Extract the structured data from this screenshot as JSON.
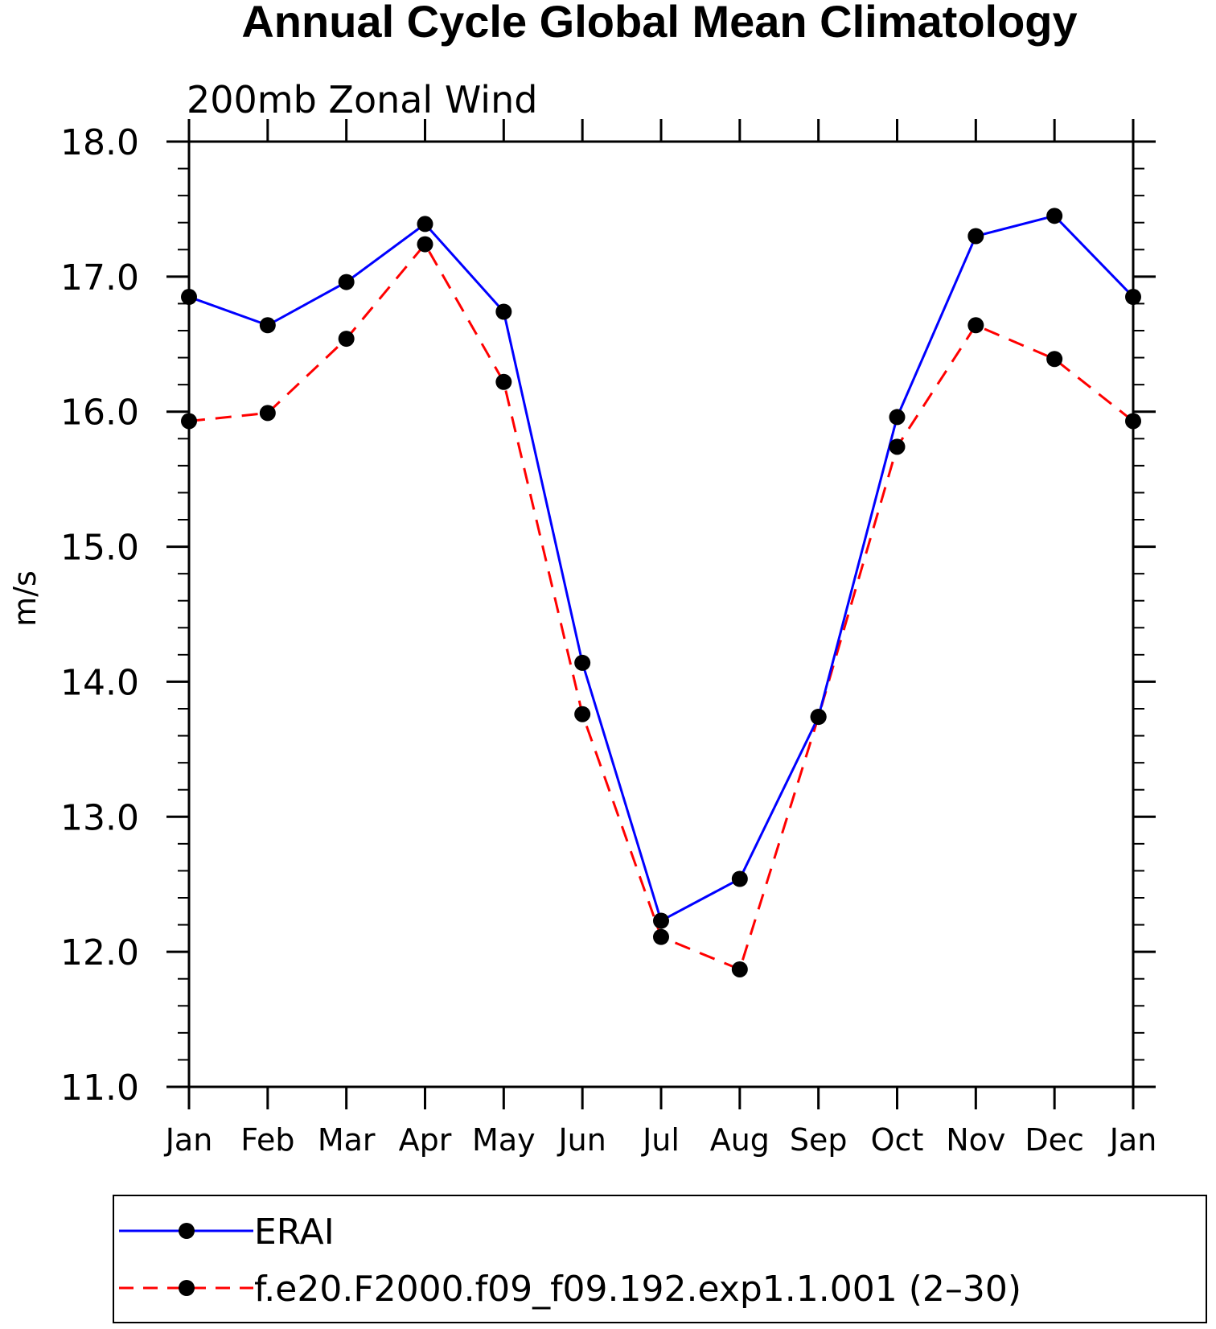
{
  "chart_data": {
    "type": "line",
    "title": "Annual Cycle Global Mean Climatology",
    "subtitle": "200mb Zonal Wind",
    "xlabel": "",
    "ylabel": "m/s",
    "categories": [
      "Jan",
      "Feb",
      "Mar",
      "Apr",
      "May",
      "Jun",
      "Jul",
      "Aug",
      "Sep",
      "Oct",
      "Nov",
      "Dec",
      "Jan"
    ],
    "ylim": [
      11.0,
      18.0
    ],
    "yticks": [
      "11.0",
      "12.0",
      "13.0",
      "14.0",
      "15.0",
      "16.0",
      "17.0",
      "18.0"
    ],
    "yminor_step": 0.2,
    "grid": false,
    "legend_position": "bottom",
    "series": [
      {
        "name": "ERAI",
        "color": "#0000ff",
        "style": "solid",
        "marker": "filled-circle",
        "values": [
          16.85,
          16.64,
          16.96,
          17.39,
          16.74,
          14.14,
          12.23,
          12.54,
          13.74,
          15.96,
          17.3,
          17.45,
          16.85
        ]
      },
      {
        "name": "f.e20.F2000.f09_f09.192.exp1.1.001 (2–30)",
        "color": "#ff0000",
        "style": "dashed",
        "marker": "filled-circle",
        "values": [
          15.93,
          15.99,
          16.54,
          17.24,
          16.22,
          13.76,
          12.11,
          11.87,
          13.74,
          15.74,
          16.64,
          16.39,
          15.93
        ]
      }
    ]
  }
}
